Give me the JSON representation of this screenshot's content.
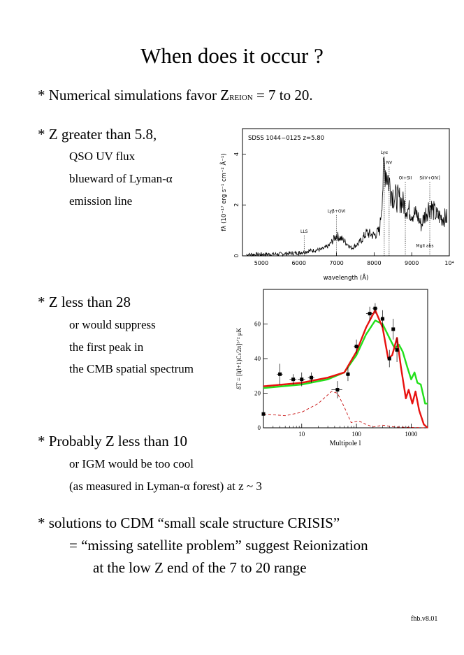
{
  "title": "When does it occur ?",
  "b1": {
    "pre": "* Numerical simulations favor Z",
    "sub": "REION",
    "post": " = 7 to 20."
  },
  "b2": {
    "head": "* Z greater than 5.8,",
    "lines": [
      "QSO UV flux",
      "blueward of Lyman-α",
      "emission line"
    ]
  },
  "b3": {
    "head": "* Z less than 28",
    "lines": [
      "or would suppress",
      "the first peak in",
      "the CMB spatial spectrum"
    ]
  },
  "b4": {
    "head": "* Probably Z less than 10",
    "lines": [
      "or IGM would be too cool",
      "(as measured in Lyman-α forest) at z ~ 3"
    ]
  },
  "b5": {
    "head": "* solutions to CDM “small scale structure CRISIS”",
    "lines": [
      "= “missing satellite problem” suggest Reionization",
      "at the low Z end of the 7 to 20 range"
    ]
  },
  "footer": "fhb.v8.01",
  "chart_data": [
    {
      "type": "line",
      "title": "SDSS 1044−0125 z=5.80",
      "xlabel": "wavelength (Å)",
      "ylabel": "fλ (10⁻¹⁷ erg s⁻¹ cm⁻² Å⁻¹)",
      "xlim": [
        4500,
        10000
      ],
      "ylim": [
        0,
        5
      ],
      "xticks": [
        "5000",
        "6000",
        "7000",
        "8000",
        "9000",
        "10⁴"
      ],
      "yticks": [
        "0",
        "2",
        "4"
      ],
      "annotations": [
        {
          "label": "LLS",
          "x": 6140
        },
        {
          "label": "Lyβ+OVI",
          "x": 7000
        },
        {
          "label": "Lyα",
          "x": 8270
        },
        {
          "label": "NV",
          "x": 8400
        },
        {
          "label": "OI+SII",
          "x": 8830
        },
        {
          "label": "SiIV+OIV]",
          "x": 9480
        },
        {
          "label": "MgII abs",
          "x": 9200
        }
      ],
      "series": [
        {
          "values": [
            [
              4600,
              0.05
            ],
            [
              5500,
              0.07
            ],
            [
              6000,
              0.12
            ],
            [
              6300,
              0.2
            ],
            [
              6600,
              0.25
            ],
            [
              6800,
              0.4
            ],
            [
              7000,
              0.8
            ],
            [
              7200,
              0.6
            ],
            [
              7400,
              0.3
            ],
            [
              7600,
              0.5
            ],
            [
              7800,
              0.9
            ],
            [
              8000,
              0.8
            ],
            [
              8150,
              1.0
            ],
            [
              8270,
              3.6
            ],
            [
              8350,
              3.2
            ],
            [
              8450,
              2.6
            ],
            [
              8550,
              2.3
            ],
            [
              8700,
              2.2
            ],
            [
              8850,
              1.9
            ],
            [
              9000,
              1.7
            ],
            [
              9150,
              1.6
            ],
            [
              9250,
              1.2
            ],
            [
              9350,
              1.6
            ],
            [
              9480,
              2.0
            ],
            [
              9650,
              1.6
            ],
            [
              9800,
              1.5
            ],
            [
              9950,
              1.5
            ]
          ]
        }
      ]
    },
    {
      "type": "line",
      "xlabel": "Multipole l",
      "ylabel": "δT = [l(l+1)Cₗ/2π]¹ᐟ² μK",
      "xscale": "log",
      "xlim": [
        2,
        2000
      ],
      "ylim": [
        0,
        80
      ],
      "xticks": [
        "10",
        "100",
        "1000"
      ],
      "yticks": [
        "0",
        "20",
        "40",
        "60"
      ],
      "series": [
        {
          "color": "#e8110f",
          "values": [
            [
              2,
              24
            ],
            [
              10,
              26
            ],
            [
              30,
              29
            ],
            [
              60,
              32
            ],
            [
              100,
              44
            ],
            [
              150,
              58
            ],
            [
              220,
              68
            ],
            [
              300,
              58
            ],
            [
              380,
              40
            ],
            [
              450,
              42
            ],
            [
              550,
              52
            ],
            [
              650,
              35
            ],
            [
              800,
              17
            ],
            [
              900,
              22
            ],
            [
              1050,
              14
            ],
            [
              1200,
              21
            ],
            [
              1400,
              10
            ],
            [
              1700,
              2
            ],
            [
              2000,
              0
            ]
          ]
        },
        {
          "color": "#22e01b",
          "values": [
            [
              2,
              23
            ],
            [
              10,
              25
            ],
            [
              30,
              28
            ],
            [
              60,
              32
            ],
            [
              100,
              42
            ],
            [
              150,
              54
            ],
            [
              220,
              62
            ],
            [
              300,
              60
            ],
            [
              400,
              52
            ],
            [
              500,
              46
            ],
            [
              600,
              48
            ],
            [
              700,
              44
            ],
            [
              850,
              35
            ],
            [
              1000,
              28
            ],
            [
              1150,
              32
            ],
            [
              1300,
              26
            ],
            [
              1500,
              25
            ],
            [
              1800,
              14
            ],
            [
              2000,
              14
            ]
          ]
        },
        {
          "color": "#c81010",
          "dash": true,
          "values": [
            [
              2,
              8
            ],
            [
              5,
              7
            ],
            [
              10,
              9
            ],
            [
              20,
              14
            ],
            [
              35,
              21
            ],
            [
              45,
              20
            ],
            [
              60,
              12
            ],
            [
              80,
              3
            ],
            [
              110,
              4
            ],
            [
              150,
              2
            ],
            [
              200,
              0.5
            ],
            [
              300,
              1.5
            ],
            [
              500,
              0.5
            ],
            [
              2000,
              0
            ]
          ]
        }
      ],
      "points": [
        [
          2,
          8,
          0,
          6
        ],
        [
          4,
          31,
          1,
          6
        ],
        [
          7,
          28,
          2,
          3
        ],
        [
          10,
          28,
          3,
          4
        ],
        [
          15,
          29,
          4,
          3
        ],
        [
          45,
          22,
          20,
          5
        ],
        [
          70,
          31,
          12,
          4
        ],
        [
          100,
          47,
          20,
          4
        ],
        [
          175,
          66,
          50,
          4
        ],
        [
          220,
          69,
          45,
          3
        ],
        [
          300,
          63,
          50,
          5
        ],
        [
          400,
          40,
          50,
          5
        ],
        [
          470,
          57,
          60,
          6
        ],
        [
          550,
          45,
          60,
          7
        ]
      ]
    }
  ]
}
